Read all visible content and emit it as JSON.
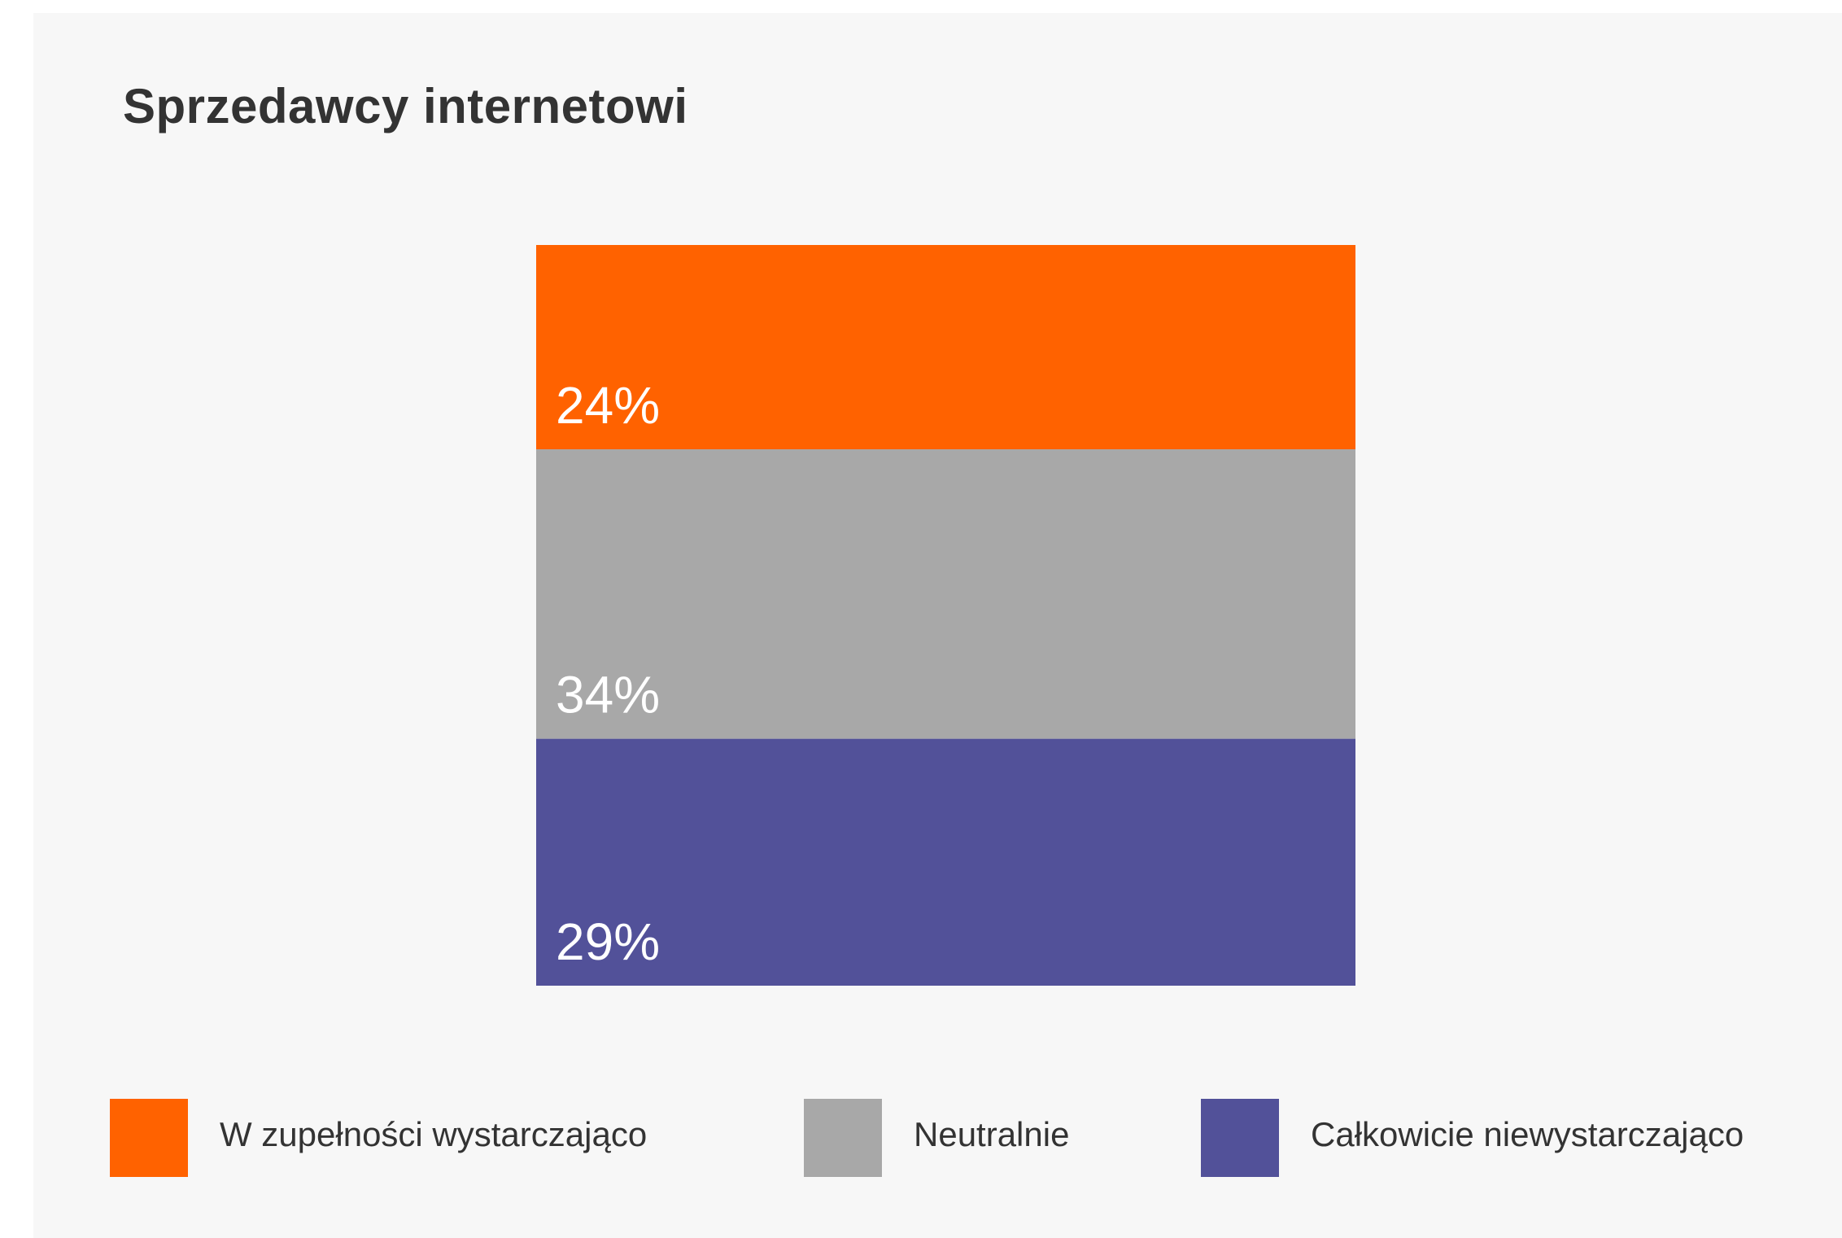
{
  "chart_data": {
    "type": "bar",
    "stacked": true,
    "title": "Sprzedawcy internetowi",
    "categories": [
      ""
    ],
    "series": [
      {
        "name": "W zupełności wystarczająco",
        "values": [
          24
        ],
        "label": "24%",
        "color": "#ff6200"
      },
      {
        "name": "Neutralnie",
        "values": [
          34
        ],
        "label": "34%",
        "color": "#a8a8a8"
      },
      {
        "name": "Całkowicie niewystarczająco",
        "values": [
          29
        ],
        "label": "29%",
        "color": "#525199"
      }
    ],
    "legend_position": "bottom",
    "grid": false
  },
  "colors": {
    "background": "#f7f7f7",
    "label_text": "#ffffff",
    "text": "#333333"
  }
}
